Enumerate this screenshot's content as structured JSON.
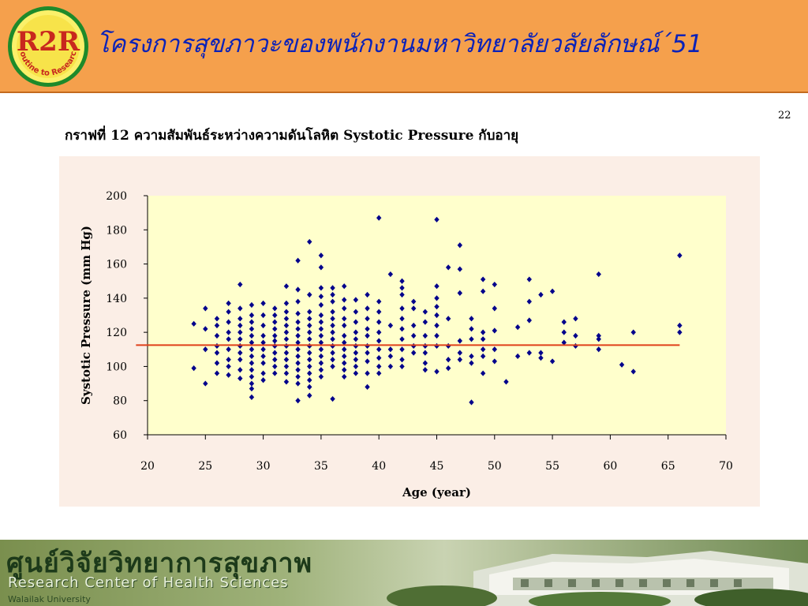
{
  "header": {
    "title": "โครงการสุขภาวะของพนักงานมหาวิทยาลัยวลัยลักษณ์´51",
    "logo_text_main": "R2R",
    "logo_text_ring": "Routine to Research",
    "background_color": "#f5a04c",
    "title_color": "#0b22b8"
  },
  "page_number": "22",
  "chart_title": "กราฟที่ 12 ความสัมพันธ์ระหว่างความดันโลหิต Systotic Pressure กับอายุ",
  "chart_data": {
    "type": "scatter",
    "xlabel": "Age (year)",
    "ylabel": "Systotic Pressure (mm Hg)",
    "xlim": [
      20,
      70
    ],
    "ylim": [
      60,
      200
    ],
    "xticks": [
      20,
      25,
      30,
      35,
      40,
      45,
      50,
      55,
      60,
      65,
      70
    ],
    "yticks": [
      60,
      80,
      100,
      120,
      140,
      160,
      180,
      200
    ],
    "grid": false,
    "legend": "none",
    "plot_background": "#ffffcc",
    "marker_color": "#00008b",
    "trend_line": {
      "x": [
        19,
        66
      ],
      "y": [
        112.5,
        112.5
      ],
      "color": "#e0401a"
    },
    "points": [
      [
        24,
        125
      ],
      [
        24,
        99
      ],
      [
        25,
        134
      ],
      [
        25,
        122
      ],
      [
        25,
        110
      ],
      [
        25,
        90
      ],
      [
        26,
        128
      ],
      [
        26,
        124
      ],
      [
        26,
        118
      ],
      [
        26,
        112
      ],
      [
        26,
        108
      ],
      [
        26,
        102
      ],
      [
        26,
        96
      ],
      [
        27,
        137
      ],
      [
        27,
        132
      ],
      [
        27,
        126
      ],
      [
        27,
        120
      ],
      [
        27,
        116
      ],
      [
        27,
        110
      ],
      [
        27,
        104
      ],
      [
        27,
        100
      ],
      [
        27,
        95
      ],
      [
        28,
        148
      ],
      [
        28,
        134
      ],
      [
        28,
        128
      ],
      [
        28,
        124
      ],
      [
        28,
        120
      ],
      [
        28,
        116
      ],
      [
        28,
        112
      ],
      [
        28,
        108
      ],
      [
        28,
        104
      ],
      [
        28,
        98
      ],
      [
        28,
        93
      ],
      [
        29,
        136
      ],
      [
        29,
        130
      ],
      [
        29,
        126
      ],
      [
        29,
        122
      ],
      [
        29,
        118
      ],
      [
        29,
        114
      ],
      [
        29,
        110
      ],
      [
        29,
        106
      ],
      [
        29,
        102
      ],
      [
        29,
        98
      ],
      [
        29,
        94
      ],
      [
        29,
        90
      ],
      [
        29,
        87
      ],
      [
        29,
        82
      ],
      [
        30,
        137
      ],
      [
        30,
        130
      ],
      [
        30,
        124
      ],
      [
        30,
        118
      ],
      [
        30,
        114
      ],
      [
        30,
        110
      ],
      [
        30,
        106
      ],
      [
        30,
        102
      ],
      [
        30,
        96
      ],
      [
        30,
        92
      ],
      [
        31,
        134
      ],
      [
        31,
        130
      ],
      [
        31,
        126
      ],
      [
        31,
        122
      ],
      [
        31,
        118
      ],
      [
        31,
        115
      ],
      [
        31,
        112
      ],
      [
        31,
        108
      ],
      [
        31,
        104
      ],
      [
        31,
        100
      ],
      [
        31,
        96
      ],
      [
        32,
        147
      ],
      [
        32,
        137
      ],
      [
        32,
        132
      ],
      [
        32,
        128
      ],
      [
        32,
        124
      ],
      [
        32,
        120
      ],
      [
        32,
        116
      ],
      [
        32,
        112
      ],
      [
        32,
        108
      ],
      [
        32,
        104
      ],
      [
        32,
        100
      ],
      [
        32,
        96
      ],
      [
        32,
        91
      ],
      [
        33,
        162
      ],
      [
        33,
        145
      ],
      [
        33,
        138
      ],
      [
        33,
        131
      ],
      [
        33,
        126
      ],
      [
        33,
        122
      ],
      [
        33,
        118
      ],
      [
        33,
        114
      ],
      [
        33,
        110
      ],
      [
        33,
        106
      ],
      [
        33,
        102
      ],
      [
        33,
        98
      ],
      [
        33,
        94
      ],
      [
        33,
        90
      ],
      [
        33,
        80
      ],
      [
        34,
        173
      ],
      [
        34,
        142
      ],
      [
        34,
        132
      ],
      [
        34,
        128
      ],
      [
        34,
        124
      ],
      [
        34,
        120
      ],
      [
        34,
        116
      ],
      [
        34,
        112
      ],
      [
        34,
        108
      ],
      [
        34,
        104
      ],
      [
        34,
        100
      ],
      [
        34,
        96
      ],
      [
        34,
        92
      ],
      [
        34,
        88
      ],
      [
        34,
        83
      ],
      [
        35,
        165
      ],
      [
        35,
        158
      ],
      [
        35,
        146
      ],
      [
        35,
        141
      ],
      [
        35,
        136
      ],
      [
        35,
        130
      ],
      [
        35,
        126
      ],
      [
        35,
        122
      ],
      [
        35,
        118
      ],
      [
        35,
        114
      ],
      [
        35,
        110
      ],
      [
        35,
        106
      ],
      [
        35,
        102
      ],
      [
        35,
        98
      ],
      [
        35,
        94
      ],
      [
        36,
        146
      ],
      [
        36,
        142
      ],
      [
        36,
        138
      ],
      [
        36,
        132
      ],
      [
        36,
        128
      ],
      [
        36,
        124
      ],
      [
        36,
        120
      ],
      [
        36,
        116
      ],
      [
        36,
        112
      ],
      [
        36,
        108
      ],
      [
        36,
        104
      ],
      [
        36,
        100
      ],
      [
        36,
        81
      ],
      [
        37,
        147
      ],
      [
        37,
        139
      ],
      [
        37,
        134
      ],
      [
        37,
        128
      ],
      [
        37,
        124
      ],
      [
        37,
        118
      ],
      [
        37,
        114
      ],
      [
        37,
        110
      ],
      [
        37,
        106
      ],
      [
        37,
        102
      ],
      [
        37,
        98
      ],
      [
        37,
        94
      ],
      [
        38,
        139
      ],
      [
        38,
        132
      ],
      [
        38,
        126
      ],
      [
        38,
        120
      ],
      [
        38,
        116
      ],
      [
        38,
        112
      ],
      [
        38,
        108
      ],
      [
        38,
        104
      ],
      [
        38,
        100
      ],
      [
        38,
        96
      ],
      [
        39,
        142
      ],
      [
        39,
        134
      ],
      [
        39,
        128
      ],
      [
        39,
        122
      ],
      [
        39,
        118
      ],
      [
        39,
        112
      ],
      [
        39,
        108
      ],
      [
        39,
        103
      ],
      [
        39,
        96
      ],
      [
        39,
        88
      ],
      [
        40,
        187
      ],
      [
        40,
        138
      ],
      [
        40,
        132
      ],
      [
        40,
        126
      ],
      [
        40,
        120
      ],
      [
        40,
        115
      ],
      [
        40,
        110
      ],
      [
        40,
        105
      ],
      [
        40,
        100
      ],
      [
        40,
        96
      ],
      [
        41,
        154
      ],
      [
        41,
        124
      ],
      [
        41,
        110
      ],
      [
        41,
        106
      ],
      [
        41,
        100
      ],
      [
        42,
        150
      ],
      [
        42,
        146
      ],
      [
        42,
        142
      ],
      [
        42,
        134
      ],
      [
        42,
        128
      ],
      [
        42,
        122
      ],
      [
        42,
        116
      ],
      [
        42,
        110
      ],
      [
        42,
        104
      ],
      [
        42,
        100
      ],
      [
        43,
        138
      ],
      [
        43,
        134
      ],
      [
        43,
        124
      ],
      [
        43,
        118
      ],
      [
        43,
        112
      ],
      [
        43,
        108
      ],
      [
        44,
        132
      ],
      [
        44,
        126
      ],
      [
        44,
        118
      ],
      [
        44,
        112
      ],
      [
        44,
        108
      ],
      [
        44,
        102
      ],
      [
        44,
        98
      ],
      [
        45,
        186
      ],
      [
        45,
        147
      ],
      [
        45,
        140
      ],
      [
        45,
        135
      ],
      [
        45,
        130
      ],
      [
        45,
        124
      ],
      [
        45,
        118
      ],
      [
        45,
        112
      ],
      [
        45,
        97
      ],
      [
        46,
        158
      ],
      [
        46,
        128
      ],
      [
        46,
        112
      ],
      [
        46,
        104
      ],
      [
        46,
        99
      ],
      [
        47,
        171
      ],
      [
        47,
        157
      ],
      [
        47,
        143
      ],
      [
        47,
        115
      ],
      [
        47,
        108
      ],
      [
        47,
        104
      ],
      [
        48,
        128
      ],
      [
        48,
        122
      ],
      [
        48,
        116
      ],
      [
        48,
        106
      ],
      [
        48,
        102
      ],
      [
        48,
        79
      ],
      [
        49,
        151
      ],
      [
        49,
        144
      ],
      [
        49,
        120
      ],
      [
        49,
        116
      ],
      [
        49,
        110
      ],
      [
        49,
        106
      ],
      [
        49,
        96
      ],
      [
        50,
        148
      ],
      [
        50,
        134
      ],
      [
        50,
        121
      ],
      [
        50,
        110
      ],
      [
        50,
        103
      ],
      [
        51,
        91
      ],
      [
        52,
        123
      ],
      [
        52,
        106
      ],
      [
        53,
        151
      ],
      [
        53,
        138
      ],
      [
        53,
        127
      ],
      [
        53,
        108
      ],
      [
        54,
        142
      ],
      [
        54,
        108
      ],
      [
        54,
        105
      ],
      [
        55,
        144
      ],
      [
        55,
        103
      ],
      [
        56,
        126
      ],
      [
        56,
        120
      ],
      [
        56,
        114
      ],
      [
        57,
        128
      ],
      [
        57,
        118
      ],
      [
        57,
        112
      ],
      [
        59,
        154
      ],
      [
        59,
        118
      ],
      [
        59,
        116
      ],
      [
        59,
        110
      ],
      [
        61,
        101
      ],
      [
        62,
        120
      ],
      [
        62,
        97
      ],
      [
        66,
        165
      ],
      [
        66,
        124
      ],
      [
        66,
        120
      ]
    ]
  },
  "footer": {
    "title_th": "ศูนย์วิจัยวิทยาการสุขภาพ",
    "title_en": "Research Center of Health Sciences",
    "university": "Walailak University"
  }
}
